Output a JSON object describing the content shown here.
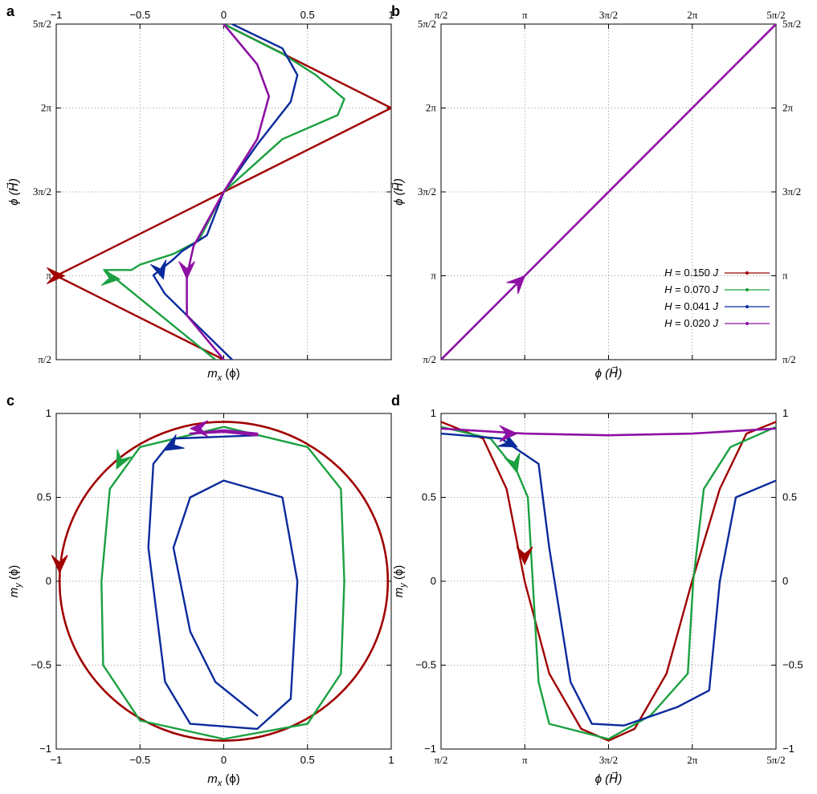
{
  "colors": {
    "H150": "#a00000",
    "H070": "#1aa040",
    "H041": "#0a2a9c",
    "H020": "#8e10a4",
    "grid": "#9a9a9a"
  },
  "chart_data": [
    {
      "id": "a",
      "panel_label": "a",
      "type": "line",
      "xlabel_main": "m",
      "xlabel_sub": "x",
      "xlabel_arg": "(ϕ)",
      "ylabel": "ϕ (H⃗)",
      "xlim": [
        -1,
        1
      ],
      "ylim": [
        1.5708,
        7.854
      ],
      "top_ticks": [
        "−1",
        "−0.5",
        "0",
        "0.5",
        "1"
      ],
      "top_tick_values": [
        -1,
        -0.5,
        0,
        0.5,
        1
      ],
      "y_ticks": [
        "π/2",
        "π",
        "3π/2",
        "2π",
        "5π/2"
      ],
      "y_tick_values": [
        1.5708,
        3.1416,
        4.7124,
        6.2832,
        7.854
      ],
      "grid": true,
      "series": [
        {
          "key": "H150",
          "points": [
            [
              0,
              1.5708
            ],
            [
              -1,
              3.1416
            ],
            [
              0,
              4.7124
            ],
            [
              1,
              6.2832
            ],
            [
              0,
              7.854
            ]
          ],
          "arrow": [
            -0.95,
            3.1416,
            1,
            0
          ]
        },
        {
          "key": "H070",
          "points": [
            [
              -0.05,
              1.5708
            ],
            [
              -0.71,
              3.25
            ],
            [
              -0.55,
              3.25
            ],
            [
              -0.5,
              3.35
            ],
            [
              -0.3,
              3.55
            ],
            [
              -0.15,
              3.8
            ],
            [
              0,
              4.7124
            ],
            [
              0.35,
              5.7
            ],
            [
              0.68,
              6.15
            ],
            [
              0.72,
              6.45
            ],
            [
              0.55,
              6.9
            ],
            [
              0.35,
              7.3
            ],
            [
              0.0,
              7.854
            ]
          ],
          "arrow": [
            -0.62,
            3.08,
            1,
            -0.1
          ]
        },
        {
          "key": "H041",
          "points": [
            [
              0.05,
              1.5708
            ],
            [
              -0.35,
              2.8
            ],
            [
              -0.42,
              3.15
            ],
            [
              -0.3,
              3.45
            ],
            [
              -0.25,
              3.6
            ],
            [
              -0.1,
              3.9
            ],
            [
              0,
              4.7124
            ],
            [
              0.2,
              5.6
            ],
            [
              0.4,
              6.4
            ],
            [
              0.44,
              6.9
            ],
            [
              0.35,
              7.4
            ],
            [
              0.05,
              7.854
            ]
          ],
          "arrow": [
            -0.36,
            3.08,
            0.3,
            -1
          ]
        },
        {
          "key": "H020",
          "points": [
            [
              0,
              1.5708
            ],
            [
              -0.22,
              2.4
            ],
            [
              -0.22,
              3.14
            ],
            [
              -0.18,
              3.7
            ],
            [
              0,
              4.7124
            ],
            [
              0.2,
              5.7
            ],
            [
              0.27,
              6.5
            ],
            [
              0.2,
              7.1
            ],
            [
              0.0,
              7.854
            ]
          ],
          "arrow": [
            -0.22,
            3.08,
            0,
            -1
          ]
        }
      ]
    },
    {
      "id": "b",
      "panel_label": "b",
      "type": "line",
      "xlabel": "ϕ (H⃗)",
      "ylabel": "ϕ (H⃗)",
      "xlim": [
        1.5708,
        7.854
      ],
      "ylim": [
        1.5708,
        7.854
      ],
      "top_ticks": [
        "π/2",
        "π",
        "3π/2",
        "2π",
        "5π/2"
      ],
      "top_tick_values": [
        1.5708,
        3.1416,
        4.7124,
        6.2832,
        7.854
      ],
      "y_ticks": [
        "π/2",
        "π",
        "3π/2",
        "2π",
        "5π/2"
      ],
      "y_tick_values": [
        1.5708,
        3.1416,
        4.7124,
        6.2832,
        7.854
      ],
      "grid": true,
      "legend": [
        {
          "key": "H150",
          "prefix": "H",
          "text": " = 0.150 ",
          "unit": "J"
        },
        {
          "key": "H070",
          "prefix": "H",
          "text": " = 0.070 ",
          "unit": "J"
        },
        {
          "key": "H041",
          "prefix": "H",
          "text": " = 0.041 ",
          "unit": "J"
        },
        {
          "key": "H020",
          "prefix": "H",
          "text": " = 0.020 ",
          "unit": "J"
        }
      ],
      "legend_position": "bottom-right",
      "series": [
        {
          "key": "H020",
          "points": [
            [
              1.5708,
              1.5708
            ],
            [
              7.854,
              7.854
            ]
          ],
          "arrow": [
            3.1416,
            3.1416,
            1,
            1
          ]
        }
      ]
    },
    {
      "id": "c",
      "panel_label": "c",
      "type": "line",
      "xlabel_main": "m",
      "xlabel_sub": "x",
      "xlabel_arg": "(ϕ)",
      "ylabel_main": "m",
      "ylabel_sub": "y",
      "ylabel_arg": "(ϕ)",
      "xlim": [
        -1,
        1
      ],
      "ylim": [
        -1,
        1
      ],
      "x_ticks": [
        "−1",
        "−0.5",
        "0",
        "0.5",
        "1"
      ],
      "x_tick_values": [
        -1,
        -0.5,
        0,
        0.5,
        1
      ],
      "y_ticks": [
        "−1",
        "−0.5",
        "0",
        "0.5",
        "1"
      ],
      "y_tick_values": [
        -1,
        -0.5,
        0,
        0.5,
        1
      ],
      "grid": true,
      "series": [
        {
          "key": "H150",
          "shape": "ellipse",
          "rx": 0.98,
          "ry": 0.95,
          "arrow": [
            -0.98,
            0.05,
            0,
            -1
          ]
        },
        {
          "key": "H070",
          "points": [
            [
              0.0,
              0.92
            ],
            [
              0.5,
              0.8
            ],
            [
              0.7,
              0.55
            ],
            [
              0.72,
              0.0
            ],
            [
              0.7,
              -0.55
            ],
            [
              0.5,
              -0.85
            ],
            [
              0.0,
              -0.94
            ],
            [
              -0.5,
              -0.83
            ],
            [
              -0.72,
              -0.5
            ],
            [
              -0.73,
              0.0
            ],
            [
              -0.68,
              0.55
            ],
            [
              -0.5,
              0.8
            ],
            [
              0.0,
              0.92
            ]
          ],
          "arrow": [
            -0.64,
            0.67,
            -0.5,
            -1
          ]
        },
        {
          "key": "H041",
          "points": [
            [
              0.2,
              0.87
            ],
            [
              -0.3,
              0.85
            ],
            [
              -0.42,
              0.7
            ],
            [
              -0.45,
              0.2
            ],
            [
              -0.35,
              -0.6
            ],
            [
              -0.2,
              -0.85
            ],
            [
              0.2,
              -0.88
            ],
            [
              0.4,
              -0.7
            ],
            [
              0.44,
              0.0
            ],
            [
              0.35,
              0.5
            ],
            [
              0.0,
              0.6
            ],
            [
              -0.2,
              0.5
            ],
            [
              -0.3,
              0.2
            ],
            [
              -0.2,
              -0.3
            ],
            [
              -0.05,
              -0.6
            ],
            [
              0.2,
              -0.8
            ]
          ],
          "arrow": [
            -0.35,
            0.78,
            -1,
            -0.6
          ]
        },
        {
          "key": "H020",
          "points": [
            [
              0.2,
              0.87
            ],
            [
              0.0,
              0.89
            ],
            [
              -0.2,
              0.88
            ],
            [
              0.0,
              0.9
            ],
            [
              0.2,
              0.88
            ]
          ],
          "arrow": [
            -0.2,
            0.91,
            -1,
            0
          ]
        }
      ]
    },
    {
      "id": "d",
      "panel_label": "d",
      "type": "line",
      "xlabel": "ϕ (H⃗)",
      "ylabel_main": "m",
      "ylabel_sub": "y",
      "ylabel_arg": "(ϕ)",
      "xlim": [
        1.5708,
        7.854
      ],
      "ylim": [
        -1,
        1
      ],
      "x_ticks": [
        "π/2",
        "π",
        "3π/2",
        "2π",
        "5π/2"
      ],
      "x_tick_values": [
        1.5708,
        3.1416,
        4.7124,
        6.2832,
        7.854
      ],
      "y_ticks": [
        "−1",
        "−0.5",
        "0",
        "0.5",
        "1"
      ],
      "y_tick_values": [
        -1,
        -0.5,
        0,
        0.5,
        1
      ],
      "grid": true,
      "series": [
        {
          "key": "H150",
          "points": [
            [
              1.5708,
              0.95
            ],
            [
              2.36,
              0.85
            ],
            [
              2.8,
              0.55
            ],
            [
              3.14,
              0.0
            ],
            [
              3.6,
              -0.55
            ],
            [
              4.2,
              -0.88
            ],
            [
              4.7124,
              -0.95
            ],
            [
              5.2,
              -0.88
            ],
            [
              5.8,
              -0.55
            ],
            [
              6.28,
              0.0
            ],
            [
              6.8,
              0.55
            ],
            [
              7.3,
              0.88
            ],
            [
              7.854,
              0.95
            ]
          ],
          "arrow": [
            3.14,
            0.1,
            0,
            -1
          ]
        },
        {
          "key": "H070",
          "points": [
            [
              1.5708,
              0.92
            ],
            [
              2.5,
              0.85
            ],
            [
              3.0,
              0.65
            ],
            [
              3.2,
              0.5
            ],
            [
              3.4,
              -0.6
            ],
            [
              3.6,
              -0.85
            ],
            [
              4.7124,
              -0.94
            ],
            [
              5.5,
              -0.8
            ],
            [
              6.2,
              -0.55
            ],
            [
              6.3,
              0.0
            ],
            [
              6.5,
              0.55
            ],
            [
              7.0,
              0.8
            ],
            [
              7.854,
              0.92
            ]
          ],
          "arrow": [
            3.0,
            0.65,
            0.3,
            -1
          ]
        },
        {
          "key": "H041",
          "points": [
            [
              1.5708,
              0.88
            ],
            [
              2.7,
              0.85
            ],
            [
              3.4,
              0.7
            ],
            [
              3.6,
              0.2
            ],
            [
              4.0,
              -0.6
            ],
            [
              4.4,
              -0.85
            ],
            [
              5.0,
              -0.86
            ],
            [
              6.0,
              -0.75
            ],
            [
              6.6,
              -0.65
            ],
            [
              6.8,
              0.0
            ],
            [
              7.1,
              0.5
            ],
            [
              7.854,
              0.6
            ]
          ],
          "arrow": [
            3.0,
            0.8,
            1,
            -0.5
          ]
        },
        {
          "key": "H020",
          "points": [
            [
              1.5708,
              0.91
            ],
            [
              3.14,
              0.88
            ],
            [
              4.7124,
              0.87
            ],
            [
              6.28,
              0.88
            ],
            [
              7.854,
              0.91
            ]
          ],
          "arrow": [
            3.0,
            0.88,
            1,
            0
          ]
        }
      ]
    }
  ]
}
